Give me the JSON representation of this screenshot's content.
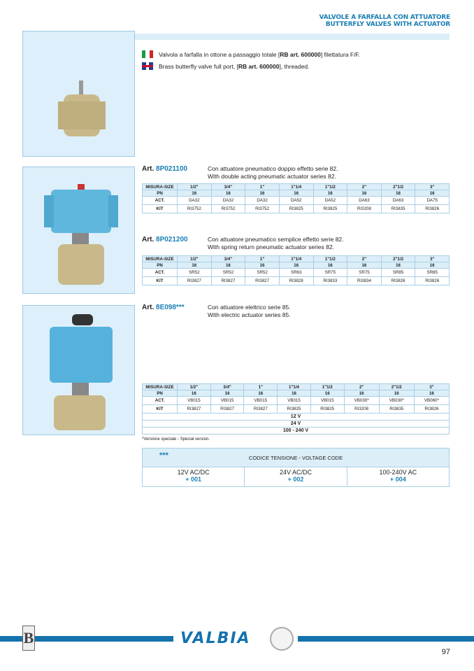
{
  "header": {
    "title_it": "VALVOLE A FARFALLA CON ATTUATORE",
    "title_en": "BUTTERFLY VALVES WITH ACTUATOR"
  },
  "intro": {
    "it_prefix": "Valvola a farfalla in ottone a passaggio totale [",
    "it_bold": "RB art. 600000",
    "it_suffix": "] filettatura F/F.",
    "en_prefix": "Brass butterfly valve full port, [",
    "en_bold": "RB art. 600000",
    "en_suffix": "], threaded.",
    "flag_it": "italian-flag",
    "flag_en": "uk-flag"
  },
  "articles": [
    {
      "art_label": "Art.",
      "code": "8P021100",
      "desc_it": "Con attuatore pneumatico doppio effetto serie 82.",
      "desc_en": "With double acting pneumatic actuator series 82.",
      "table": {
        "header": [
          "MISURA-SIZE",
          "1/2\"",
          "3/4\"",
          "1\"",
          "1\"1/4",
          "1\"1/2",
          "2\"",
          "2\"1/2",
          "3\""
        ],
        "rows": [
          [
            "PN",
            "16",
            "16",
            "16",
            "16",
            "16",
            "16",
            "16",
            "16"
          ],
          [
            "ACT.",
            "DA32",
            "DA32",
            "DA32",
            "DA52",
            "DA52",
            "DA63",
            "DA63",
            "DA75"
          ],
          [
            "KIT",
            "RI3752",
            "RI3752",
            "RI3752",
            "RI3825",
            "RI3825",
            "RI3208",
            "RI3835",
            "RI3826"
          ]
        ]
      }
    },
    {
      "art_label": "Art.",
      "code": "8P021200",
      "desc_it": "Con attuatore pneumatico semplice effetto serie 82.",
      "desc_en": "With spring return pneumatic actuator series 82.",
      "table": {
        "header": [
          "MISURA-SIZE",
          "1/2\"",
          "3/4\"",
          "1\"",
          "1\"1/4",
          "1\"1/2",
          "2\"",
          "2\"1/2",
          "3\""
        ],
        "rows": [
          [
            "PN",
            "16",
            "16",
            "16",
            "16",
            "16",
            "16",
            "16",
            "16"
          ],
          [
            "ACT.",
            "SR52",
            "SR52",
            "SR52",
            "SR63",
            "SR75",
            "SR75",
            "SR85",
            "SR85"
          ],
          [
            "KIT",
            "RI3827",
            "RI3827",
            "RI3827",
            "RI3828",
            "RI3833",
            "RI3834",
            "RI3826",
            "RI3826"
          ]
        ]
      }
    },
    {
      "art_label": "Art.",
      "code": "8E098***",
      "desc_it": "Con attuatore elettrico serie 85.",
      "desc_en": "With electric actuator series 85.",
      "table": {
        "header": [
          "MISURA-SIZE",
          "1/2\"",
          "3/4\"",
          "1\"",
          "1\"1/4",
          "1\"1/2",
          "2\"",
          "2\"1/2",
          "3\""
        ],
        "rows": [
          [
            "PN",
            "16",
            "16",
            "16",
            "16",
            "16",
            "16",
            "16",
            "16"
          ],
          [
            "ACT.",
            "VB015",
            "VB015",
            "VB015",
            "VB015",
            "VB015",
            "VB030*",
            "VB030*",
            "VB060*"
          ],
          [
            "KIT",
            "RI3827",
            "RI3827",
            "RI3827",
            "RI3825",
            "RI3825",
            "RI3208",
            "RI3835",
            "RI3826"
          ]
        ],
        "voltages": [
          "12 V",
          "24 V",
          "100 - 240 V"
        ]
      }
    }
  ],
  "note": "*Versione speciale - Special version.",
  "voltage_code": {
    "stars": "***",
    "title": "CODICE TENSIONE - VOLTAGE CODE",
    "items": [
      {
        "label": "12V AC/DC",
        "code": "+ 001"
      },
      {
        "label": "24V AC/DC",
        "code": "+ 002"
      },
      {
        "label": "100-240V AC",
        "code": "+ 004"
      }
    ]
  },
  "footer": {
    "brand": "VALBIA",
    "group_logo": "B",
    "page": "97",
    "accent": "#1572ad"
  }
}
